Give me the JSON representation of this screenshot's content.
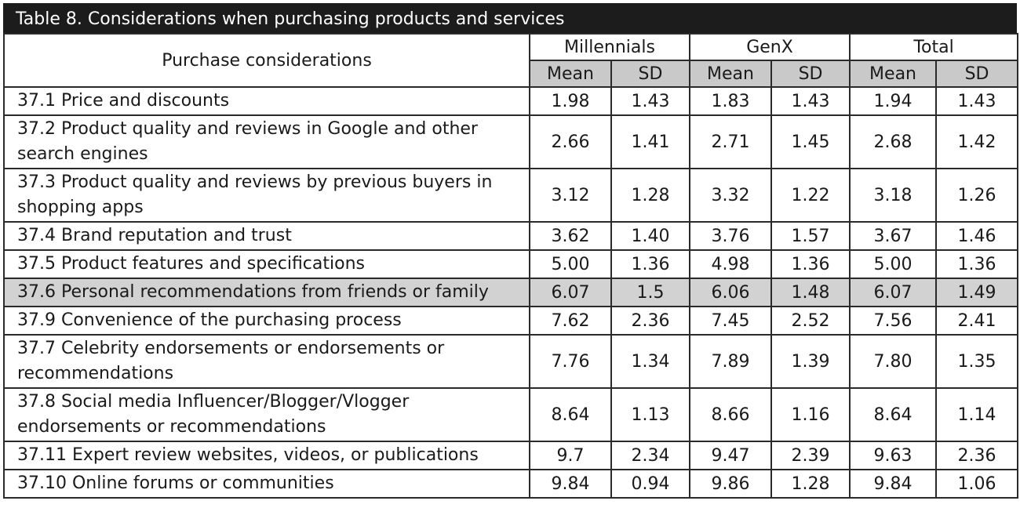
{
  "table": {
    "caption": "Table 8. Considerations when purchasing products and services",
    "row_header": "Purchase considerations",
    "groups": [
      "Millennials",
      "GenX",
      "Total"
    ],
    "sub_headers": [
      "Mean",
      "SD",
      "Mean",
      "SD",
      "Mean",
      "SD"
    ],
    "rows": [
      {
        "label": "37.1 Price and discounts",
        "values": [
          "1.98",
          "1.43",
          "1.83",
          "1.43",
          "1.94",
          "1.43"
        ]
      },
      {
        "label": "37.2 Product quality and reviews in Google and other search engines",
        "values": [
          "2.66",
          "1.41",
          "2.71",
          "1.45",
          "2.68",
          "1.42"
        ]
      },
      {
        "label": "37.3 Product quality and reviews by previous buyers in shopping apps",
        "values": [
          "3.12",
          "1.28",
          "3.32",
          "1.22",
          "3.18",
          "1.26"
        ]
      },
      {
        "label": "37.4 Brand reputation and trust",
        "values": [
          "3.62",
          "1.40",
          "3.76",
          "1.57",
          "3.67",
          "1.46"
        ]
      },
      {
        "label": "37.5 Product features and specifications",
        "values": [
          "5.00",
          "1.36",
          "4.98",
          "1.36",
          "5.00",
          "1.36"
        ]
      },
      {
        "label": "37.6 Personal recommendations from friends or family",
        "values": [
          "6.07",
          "1.5",
          "6.06",
          "1.48",
          "6.07",
          "1.49"
        ]
      },
      {
        "label": "37.9 Convenience of the purchasing process",
        "values": [
          "7.62",
          "2.36",
          "7.45",
          "2.52",
          "7.56",
          "2.41"
        ]
      },
      {
        "label": "37.7 Celebrity endorsements or endorsements or recommendations",
        "values": [
          "7.76",
          "1.34",
          "7.89",
          "1.39",
          "7.80",
          "1.35"
        ]
      },
      {
        "label": "37.8 Social media Influencer/Blogger/Vlogger endorsements or recommendations",
        "values": [
          "8.64",
          "1.13",
          "8.66",
          "1.16",
          "8.64",
          "1.14"
        ]
      },
      {
        "label": "37.11 Expert review websites, videos, or publications",
        "values": [
          "9.7",
          "2.34",
          "9.47",
          "2.39",
          "9.63",
          "2.36"
        ]
      },
      {
        "label": "37.10 Online forums or communities",
        "values": [
          "9.84",
          "0.94",
          "9.86",
          "1.28",
          "9.84",
          "1.06"
        ]
      }
    ],
    "colors": {
      "caption_bg": "#1c1c1c",
      "subheader_bg": "#c9c9c9",
      "highlight_row_bg": "#d2d2d2"
    }
  }
}
